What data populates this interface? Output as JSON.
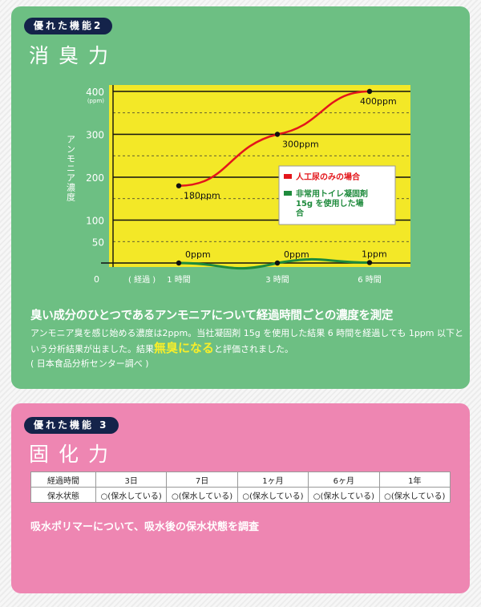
{
  "section2": {
    "badge": "優れた機能2",
    "title": "消臭力",
    "heading": "臭い成分のひとつであるアンモニアについて経過時間ごとの濃度を測定",
    "body_line1": "アンモニア臭を感じ始める濃度は2ppm。当社凝固剤 15g を使用した結果 6 時間を経過しても 1ppm 以下という分析結果が出ました。結果",
    "body_highlight": "無臭になる",
    "body_line2": "と評価されました。",
    "source": "( 日本食品分析センター調べ )"
  },
  "chart_data": {
    "type": "line",
    "ylabel": "アンモニア濃度",
    "yunit": "(ppm)",
    "xlabel": "( 経過 )",
    "origin_label": "0",
    "categories": [
      "1 時間",
      "3 時間",
      "6 時間"
    ],
    "x": [
      1,
      3,
      6
    ],
    "yticks": [
      "50",
      "100",
      "200",
      "300",
      "400"
    ],
    "ytick_values": [
      50,
      100,
      200,
      300,
      400
    ],
    "ylim": [
      0,
      400
    ],
    "grid": true,
    "legend_placement": "center-right",
    "series": [
      {
        "name": "人工尿のみの場合",
        "values": [
          180,
          300,
          400
        ],
        "labels": [
          "180ppm",
          "300ppm",
          "400ppm"
        ],
        "color": "#e3161b"
      },
      {
        "name": "非常用トイレ凝固剤15g を使用した場合",
        "values": [
          0,
          0,
          1
        ],
        "labels": [
          "0ppm",
          "0ppm",
          "1ppm"
        ],
        "color": "#1e8a3c"
      }
    ],
    "background_color": "#f3e827"
  },
  "section3": {
    "badge": "優れた機能 3",
    "title": "固化力",
    "table": {
      "header": [
        "経過時間",
        "3日",
        "7日",
        "1ヶ月",
        "6ヶ月",
        "1年"
      ],
      "row": [
        "保水状態",
        "○(保水している)",
        "○(保水している)",
        "○(保水している)",
        "○(保水している)",
        "○(保水している)"
      ]
    },
    "caption": "吸水ポリマーについて、吸水後の保水状態を調査"
  },
  "colors": {
    "green_card": "#6dbf83",
    "pink_card": "#ee86b2",
    "badge": "#14234a"
  }
}
